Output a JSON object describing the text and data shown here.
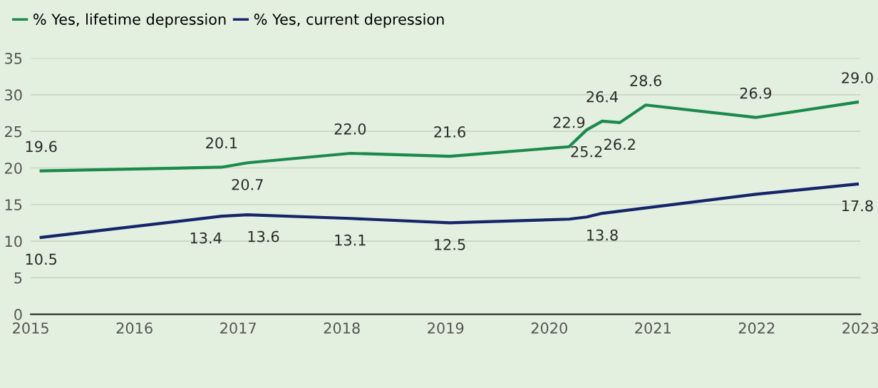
{
  "chart_data": {
    "type": "line",
    "series": [
      {
        "name": "% Yes, lifetime depression",
        "color": "#1b8a4c",
        "x": [
          2015.1,
          2016.84,
          2017.09,
          2018.08,
          2019.04,
          2020.19,
          2020.36,
          2020.51,
          2020.68,
          2020.93,
          2021.99,
          2022.97
        ],
        "values": [
          19.6,
          20.1,
          20.7,
          22.0,
          21.6,
          22.9,
          25.2,
          26.4,
          26.2,
          28.6,
          26.9,
          29.0
        ],
        "value_labels": [
          "19.6",
          "20.1",
          "20.7",
          "22.0",
          "21.6",
          "22.9",
          "25.2",
          "26.4",
          "26.2",
          "28.6",
          "26.9",
          "29.0"
        ]
      },
      {
        "name": "% Yes, current depression",
        "color": "#16246a",
        "x": [
          2015.1,
          2016.84,
          2017.09,
          2018.08,
          2019.04,
          2020.19,
          2020.36,
          2020.51,
          2021.99,
          2022.97
        ],
        "values": [
          10.5,
          13.4,
          13.6,
          13.1,
          12.5,
          13.0,
          13.3,
          13.8,
          16.4,
          17.8
        ],
        "value_labels": [
          "10.5",
          "13.4",
          "13.6",
          "13.1",
          "12.5",
          null,
          null,
          "13.8",
          null,
          "17.8"
        ]
      }
    ],
    "xlim": [
      2015,
      2023
    ],
    "xticks": [
      2015,
      2016,
      2017,
      2018,
      2019,
      2020,
      2021,
      2022,
      2023
    ],
    "ylim": [
      0,
      35
    ],
    "yticks": [
      0,
      5,
      10,
      15,
      20,
      25,
      30,
      35
    ],
    "grid": "y",
    "legend": "top left",
    "marker": "none",
    "line_style": "solid"
  }
}
